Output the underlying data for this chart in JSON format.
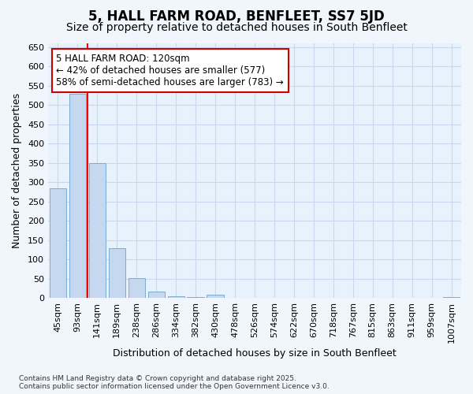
{
  "title": "5, HALL FARM ROAD, BENFLEET, SS7 5JD",
  "subtitle": "Size of property relative to detached houses in South Benfleet",
  "xlabel": "Distribution of detached houses by size in South Benfleet",
  "ylabel": "Number of detached properties",
  "categories": [
    "45sqm",
    "93sqm",
    "141sqm",
    "189sqm",
    "238sqm",
    "286sqm",
    "334sqm",
    "382sqm",
    "430sqm",
    "478sqm",
    "526sqm",
    "574sqm",
    "622sqm",
    "670sqm",
    "718sqm",
    "767sqm",
    "815sqm",
    "863sqm",
    "911sqm",
    "959sqm",
    "1007sqm"
  ],
  "values": [
    285,
    530,
    350,
    130,
    52,
    18,
    5,
    3,
    8,
    0,
    0,
    0,
    0,
    0,
    0,
    0,
    0,
    0,
    0,
    0,
    2
  ],
  "bar_color": "#c5d8ef",
  "bar_edge_color": "#7aadd4",
  "grid_color": "#c8d8ee",
  "plot_bg_color": "#e8f2fc",
  "fig_bg_color": "#f0f6fc",
  "red_line_x": 1.5,
  "annotation_text": "5 HALL FARM ROAD: 120sqm\n← 42% of detached houses are smaller (577)\n58% of semi-detached houses are larger (783) →",
  "annotation_box_facecolor": "#ffffff",
  "annotation_box_edgecolor": "#cc0000",
  "footnote_line1": "Contains HM Land Registry data © Crown copyright and database right 2025.",
  "footnote_line2": "Contains public sector information licensed under the Open Government Licence v3.0.",
  "ylim_max": 660,
  "ytick_step": 50,
  "title_fontsize": 12,
  "subtitle_fontsize": 10,
  "axis_label_fontsize": 9,
  "tick_fontsize": 8,
  "annotation_fontsize": 8.5,
  "footnote_fontsize": 6.5
}
